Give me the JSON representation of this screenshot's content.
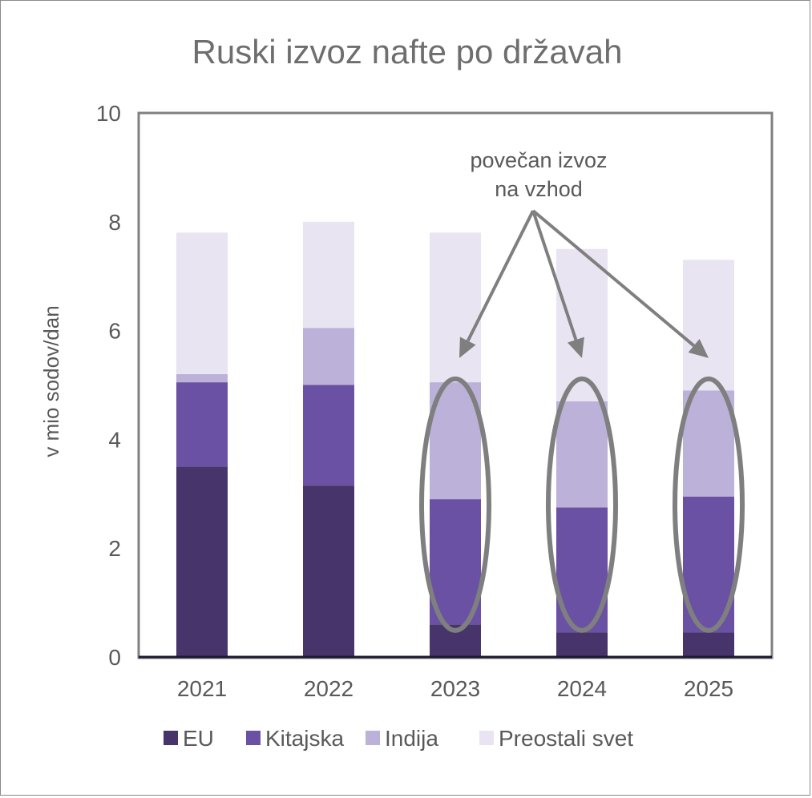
{
  "chart_data": {
    "type": "bar",
    "stacked": true,
    "title": "Ruski izvoz nafte po državah",
    "ylabel": "v mio sodov/dan",
    "xlabel": "",
    "ylim": [
      0,
      10
    ],
    "yticks": [
      0,
      2,
      4,
      6,
      8,
      10
    ],
    "categories": [
      "2021",
      "2022",
      "2023",
      "2024",
      "2025"
    ],
    "series": [
      {
        "name": "EU",
        "color": "#46346a",
        "values": [
          3.5,
          3.15,
          0.6,
          0.45,
          0.45
        ]
      },
      {
        "name": "Kitajska",
        "color": "#6a51a3",
        "values": [
          1.55,
          1.85,
          2.3,
          2.3,
          2.5
        ]
      },
      {
        "name": "Indija",
        "color": "#bcb1d8",
        "values": [
          0.15,
          1.05,
          2.15,
          1.95,
          1.95
        ]
      },
      {
        "name": "Preostali svet",
        "color": "#e8e4f2",
        "values": [
          2.6,
          1.95,
          2.75,
          2.8,
          2.4
        ]
      }
    ],
    "annotation": {
      "lines": [
        "povečan  izvoz",
        "na vzhod"
      ],
      "highlighted_categories": [
        "2023",
        "2024",
        "2025"
      ]
    },
    "legend_position": "bottom",
    "grid": false
  }
}
